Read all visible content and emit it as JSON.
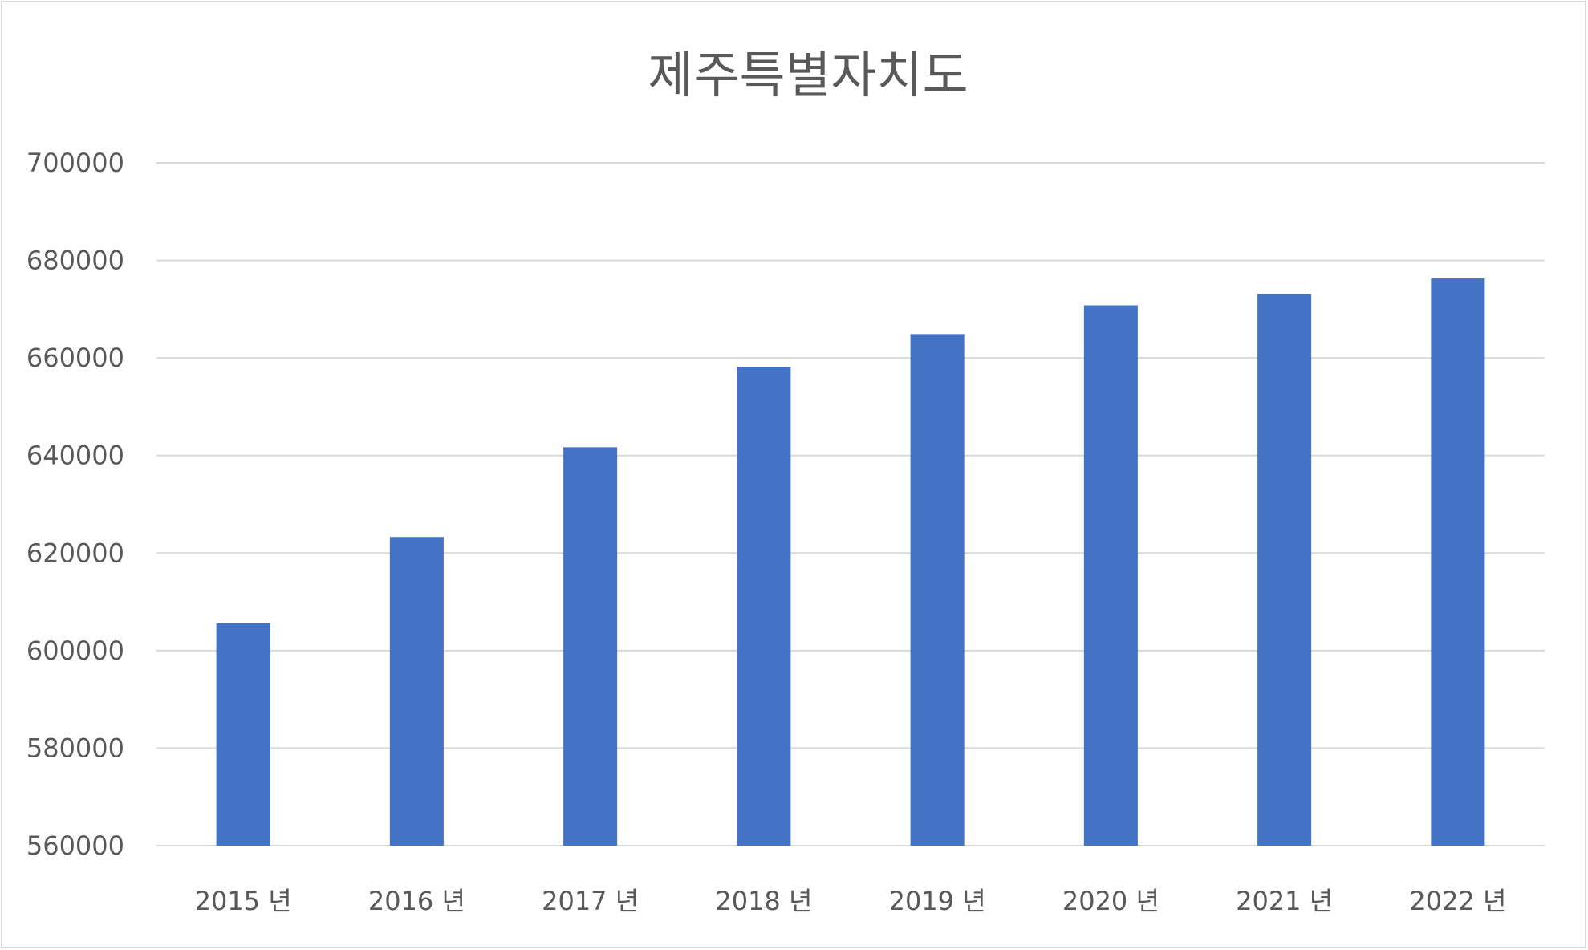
{
  "chart_data": {
    "type": "bar",
    "title": "제주특별자치도",
    "categories": [
      "2015 년",
      "2016 년",
      "2017 년",
      "2018 년",
      "2019 년",
      "2020 년",
      "2021 년",
      "2022 년"
    ],
    "series": [
      {
        "values": [
          605600,
          623300,
          641700,
          658200,
          664900,
          670800,
          673100,
          676300
        ]
      }
    ],
    "ylim": [
      560000,
      700000
    ],
    "yticks": [
      560000,
      580000,
      600000,
      620000,
      640000,
      660000,
      680000,
      700000
    ],
    "grid": true,
    "legend": "none",
    "colors": {
      "bar": "#4472C4",
      "gridline": "#d9d9d9",
      "axis": "#d9d9d9",
      "text": "#595959"
    }
  }
}
